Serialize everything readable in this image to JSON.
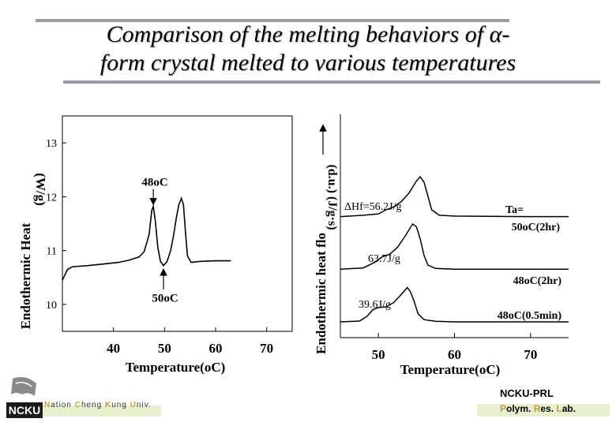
{
  "title": {
    "line1": "Comparison of the melting behaviors of α-",
    "line2": "form crystal melted to various temperatures"
  },
  "footer": {
    "left_parts": [
      "N",
      "ation ",
      "C",
      "heng ",
      "K",
      "ung ",
      "U",
      "niv."
    ],
    "logo_text": "NCKU",
    "right_line1": "NCKU-PRL",
    "right_parts": [
      "P",
      "olym. ",
      "R",
      "es. ",
      "L",
      "ab."
    ]
  },
  "chart_data": [
    {
      "type": "line",
      "xlabel": "Temperature(oC)",
      "ylabel": "Endothermic Heat Flow (J/g)",
      "ylabel_parts": [
        "Endothermic Heat",
        "(W/g)"
      ],
      "xlim": [
        30,
        75
      ],
      "ylim": [
        9.5,
        13.5
      ],
      "x_ticks": [
        40,
        50,
        60,
        70
      ],
      "y_ticks": [
        10,
        11,
        12,
        13
      ],
      "annotations": [
        {
          "text": "48oC",
          "x": 47.8,
          "y": 11.82,
          "arrow": "down"
        },
        {
          "text": "50oC",
          "x": 49.8,
          "y": 10.72,
          "arrow": "up"
        }
      ],
      "series": [
        {
          "values": [
            [
              30,
              10.45
            ],
            [
              31,
              10.65
            ],
            [
              32,
              10.7
            ],
            [
              35,
              10.72
            ],
            [
              38,
              10.75
            ],
            [
              41,
              10.78
            ],
            [
              43,
              10.82
            ],
            [
              45,
              10.88
            ],
            [
              46,
              10.98
            ],
            [
              47,
              11.3
            ],
            [
              47.5,
              11.75
            ],
            [
              47.8,
              11.82
            ],
            [
              48.2,
              11.55
            ],
            [
              48.7,
              11.05
            ],
            [
              49.2,
              10.8
            ],
            [
              49.8,
              10.72
            ],
            [
              50.5,
              10.8
            ],
            [
              51.2,
              11.0
            ],
            [
              51.8,
              11.3
            ],
            [
              52.3,
              11.6
            ],
            [
              52.8,
              11.85
            ],
            [
              53.3,
              11.97
            ],
            [
              53.7,
              11.85
            ],
            [
              54.1,
              11.35
            ],
            [
              54.5,
              10.9
            ],
            [
              55.2,
              10.78
            ],
            [
              57,
              10.8
            ],
            [
              60,
              10.81
            ],
            [
              63,
              10.81
            ]
          ]
        }
      ]
    },
    {
      "type": "line",
      "xlabel": "Temperature(oC)",
      "ylabel": "Endothermic heat flow (J/g·s) (d.u.)",
      "ylabel_parts": [
        "Endothermic heat flo",
        "(d.u.) (J/g·s)"
      ],
      "xlim": [
        45,
        75
      ],
      "x_ticks": [
        50,
        60,
        70
      ],
      "legend_title": "Ta=",
      "annotations": [
        {
          "text": "ΔHf=56.2J/g"
        },
        {
          "text": "63.7J/g"
        },
        {
          "text": "39.6J/g"
        }
      ],
      "series": [
        {
          "name": "50oC(2hr)",
          "offset": 2.0,
          "values": [
            [
              45,
              0.0
            ],
            [
              48,
              0.05
            ],
            [
              50,
              0.1
            ],
            [
              51,
              0.25
            ],
            [
              52,
              0.35
            ],
            [
              53,
              0.55
            ],
            [
              54,
              0.85
            ],
            [
              55,
              1.3
            ],
            [
              55.5,
              1.45
            ],
            [
              56,
              1.25
            ],
            [
              56.5,
              0.75
            ],
            [
              57,
              0.25
            ],
            [
              58,
              0.05
            ],
            [
              60,
              0.02
            ],
            [
              70,
              0.0
            ],
            [
              75,
              0.0
            ]
          ]
        },
        {
          "name": "48oC(2hr)",
          "offset": 1.0,
          "values": [
            [
              45,
              0.0
            ],
            [
              48,
              0.05
            ],
            [
              49.5,
              0.25
            ],
            [
              50.5,
              0.45
            ],
            [
              51.5,
              0.55
            ],
            [
              52.5,
              0.8
            ],
            [
              53.5,
              1.2
            ],
            [
              54.5,
              1.65
            ],
            [
              55,
              1.55
            ],
            [
              55.5,
              1.1
            ],
            [
              56,
              0.5
            ],
            [
              56.5,
              0.15
            ],
            [
              57.5,
              0.03
            ],
            [
              60,
              0.0
            ],
            [
              75,
              0.0
            ]
          ]
        },
        {
          "name": "48oC(0.5min)",
          "offset": 0.0,
          "values": [
            [
              45,
              0.0
            ],
            [
              47.5,
              0.03
            ],
            [
              48.5,
              0.2
            ],
            [
              49.3,
              0.45
            ],
            [
              50,
              0.52
            ],
            [
              51,
              0.55
            ],
            [
              52,
              0.7
            ],
            [
              53,
              1.0
            ],
            [
              53.8,
              1.25
            ],
            [
              54.2,
              1.1
            ],
            [
              54.7,
              0.75
            ],
            [
              55.2,
              0.3
            ],
            [
              56,
              0.08
            ],
            [
              57.5,
              0.02
            ],
            [
              60,
              0.0
            ],
            [
              75,
              0.0
            ]
          ]
        }
      ]
    }
  ],
  "colors": {
    "line": "#000000",
    "title_rule": "#9a9aa8",
    "footer_band": "#e6f0cf",
    "footer_accent": "#c89b3b"
  }
}
